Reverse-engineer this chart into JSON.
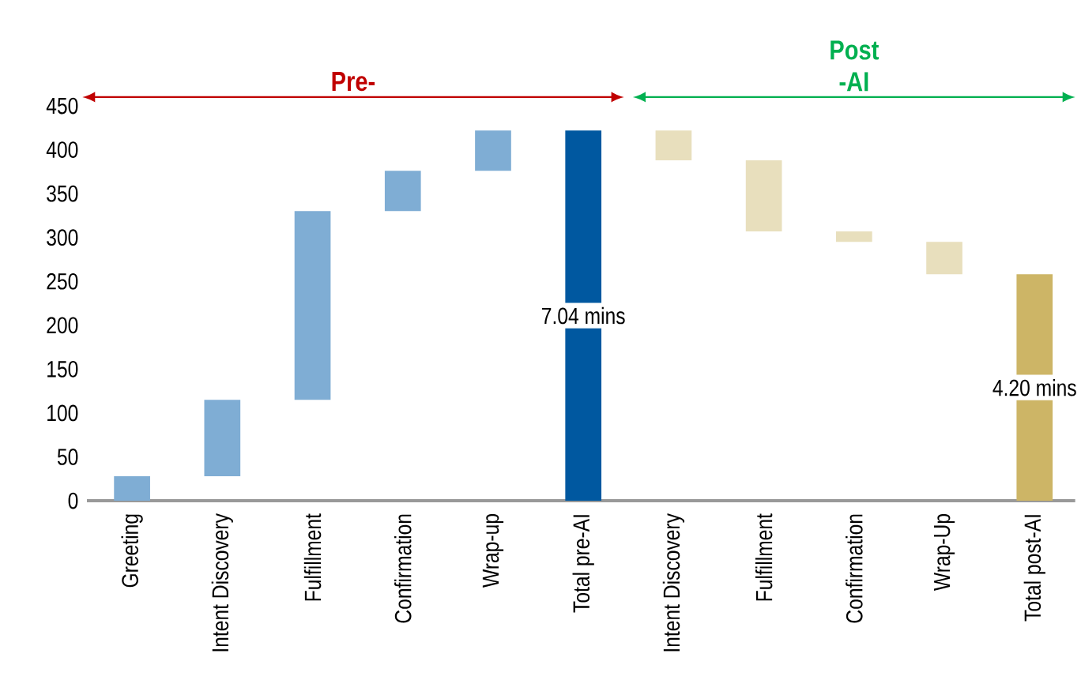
{
  "chart_data": {
    "type": "bar",
    "categories": [
      "Greeting",
      "Intent Discovery",
      "Fulfillment",
      "Confirmation",
      "Wrap-up",
      "Total pre-AI",
      "Intent Discovery",
      "Fulfillment",
      "Confirmation",
      "Wrap-Up",
      "Total post-AI"
    ],
    "values": [
      28,
      87,
      215,
      46,
      46,
      422,
      -34,
      -81,
      -12,
      -37,
      258
    ],
    "base": [
      0,
      28,
      115,
      330,
      376,
      0,
      422,
      388,
      307,
      295,
      0
    ],
    "colors": [
      "#7fadd4",
      "#7fadd4",
      "#7fadd4",
      "#7fadd4",
      "#7fadd4",
      "#0058a0",
      "#e8dfbd",
      "#e8dfbd",
      "#e8dfbd",
      "#e8dfbd",
      "#cdb566"
    ],
    "ylim": [
      0,
      450
    ],
    "yticks": [
      0,
      50,
      100,
      150,
      200,
      250,
      300,
      350,
      400,
      450
    ],
    "grid": false,
    "annotations": [
      "Pre-",
      "Post -AI",
      "7.04 mins",
      "4.20 mins"
    ]
  }
}
